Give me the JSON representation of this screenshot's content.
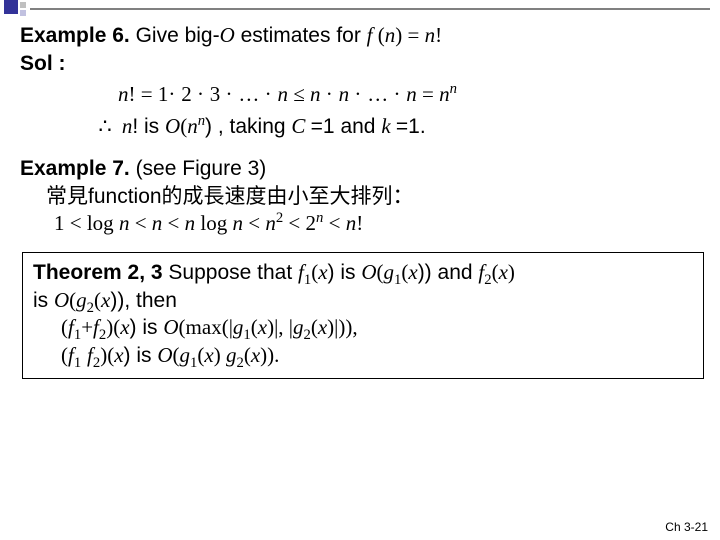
{
  "decor": {
    "square_big_color": "#333399",
    "square_sm_color": "#c0c0c0",
    "line_color": "#808080"
  },
  "example6": {
    "head_strong": "Example 6.",
    "head_rest": "  Give big-",
    "O": "O",
    "head_rest2": " estimates for ",
    "fn": "f ",
    "fn_paren": "(",
    "n": "n",
    "fn_close": ") = ",
    "nfact": "n",
    "bang": "!",
    "sol": "Sol :",
    "m1_a": "n",
    "m1_b": "! = 1",
    "m1_dot": "·",
    "m1_c": "2 ",
    "m1_d": "3 ",
    "m1_e": "… ",
    "m1_f": "n ",
    "m1_leq": "≤ ",
    "m1_g": "n ",
    "m1_h": "n ",
    "m1_i": "… ",
    "m1_j": "n ",
    "m1_eq": "= ",
    "m1_nn_base": "n",
    "m1_nn_exp": "n",
    "m2_therefore": "∴",
    "m2_a": "n",
    "m2_b": "! is ",
    "m2_O": "O",
    "m2_c": "(",
    "m2_nn_base": "n",
    "m2_nn_exp": "n",
    "m2_d": ") , taking ",
    "m2_C": "C ",
    "m2_e": "=1 and ",
    "m2_k": "k ",
    "m2_f": "=1."
  },
  "example7": {
    "head_strong": "Example 7.",
    "head_rest": " (see Figure 3)",
    "line_cjk": "常見function的成長速度由小至大排列：",
    "ineq_a": "1 < log ",
    "ineq_n1": "n",
    "ineq_b": " < ",
    "ineq_n2": "n",
    "ineq_c": " < ",
    "ineq_n3": "n",
    "ineq_d": " log ",
    "ineq_n4": "n",
    "ineq_e": " < ",
    "ineq_n5": "n",
    "ineq_exp2": "2",
    "ineq_f": " < 2",
    "ineq_expn": "n",
    "ineq_g": " < ",
    "ineq_n6": "n",
    "ineq_h": "!"
  },
  "theorem": {
    "head_strong": "Theorem 2, 3",
    "t1a": "  Suppose that ",
    "f": "f",
    "sub1": "1",
    "t1b": "(",
    "x": "x",
    "t1c": ") is ",
    "O": "O",
    "t1d": "(",
    "g": "g",
    "t1e": "(",
    "t1f": ")) and ",
    "sub2": "2",
    "t1g": "(",
    "t1h": ")",
    "line2a": "is ",
    "line2b": "(",
    "line2c": "(",
    "line2d": ")), then",
    "line3a": "(",
    "plus": "+",
    "line3b": ")(",
    "line3c": ") is ",
    "line3d": "(max(|",
    "line3e": "(",
    "line3f": ")|, |",
    "line3g": "(",
    "line3h": ")|)),",
    "line4a": "(",
    "line4b": " ",
    "line4c": ")(",
    "line4d": ") is ",
    "line4e": "(",
    "line4f": "(",
    "line4g": ") ",
    "line4h": "(",
    "line4i": "))."
  },
  "footer": "Ch 3-21"
}
